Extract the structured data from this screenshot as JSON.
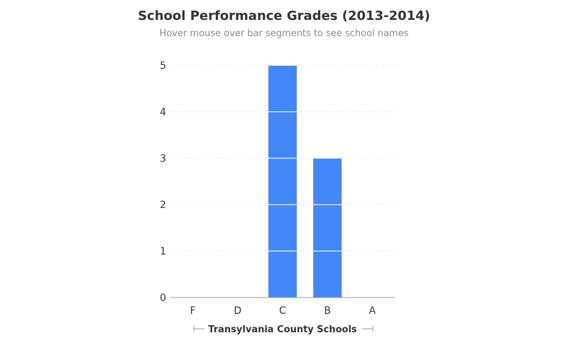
{
  "chart_data": {
    "type": "bar",
    "title": "School Performance Grades (2013-2014)",
    "subtitle": "Hover mouse over bar segments to see school names",
    "xlabel": "Transylvania County Schools",
    "ylabel": "",
    "categories": [
      "F",
      "D",
      "C",
      "B",
      "A"
    ],
    "values": [
      0,
      0,
      5,
      3,
      0
    ],
    "ylim": [
      0,
      5
    ],
    "yticks": [
      0,
      1,
      2,
      3,
      4,
      5
    ],
    "stacked_segments": true,
    "grid": "horizontal-dotted",
    "legend": "none",
    "colors": {
      "bar": "#4287f5",
      "segment_divider": "#ffffff",
      "grid": "#c8c8c8",
      "axis": "#999999"
    }
  }
}
